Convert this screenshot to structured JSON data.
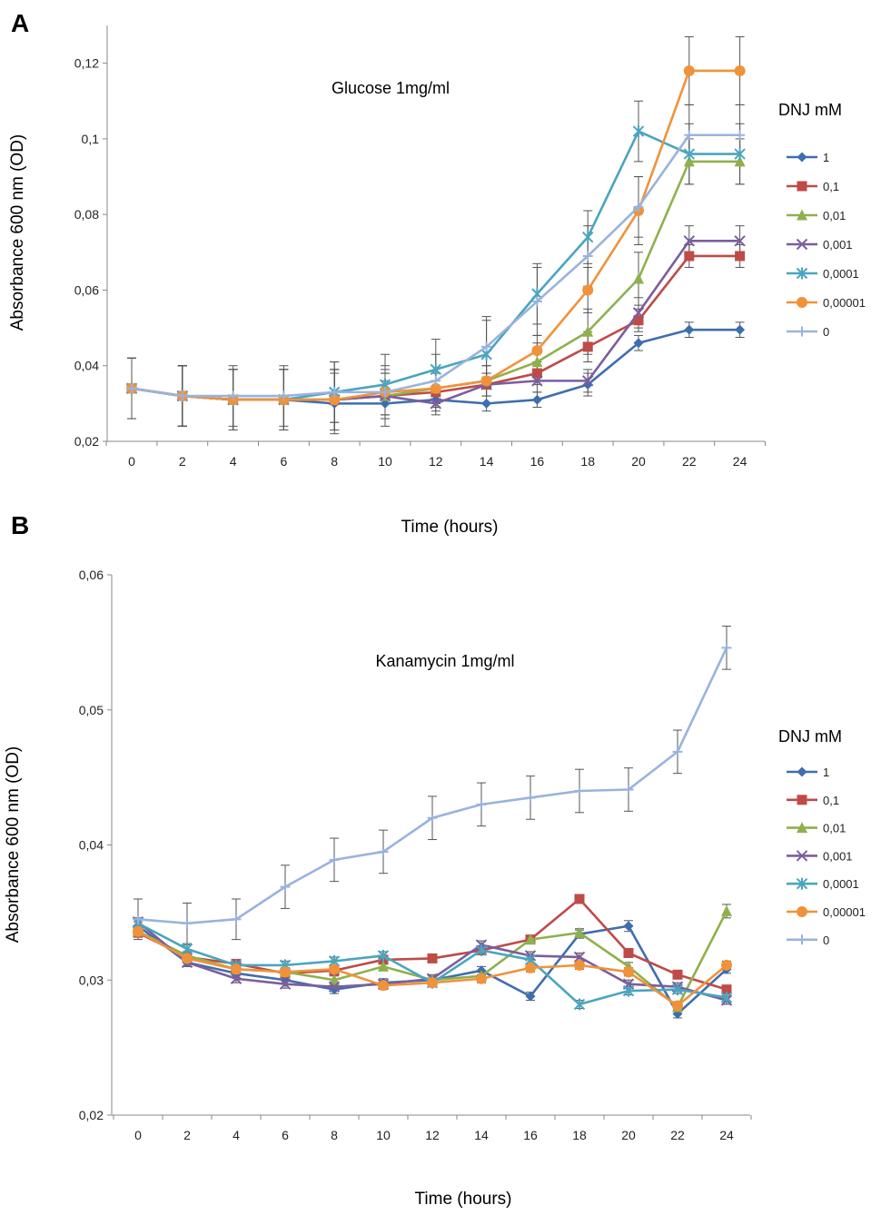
{
  "chart_data": [
    {
      "panel": "A",
      "type": "line",
      "title": "Glucose 1mg/ml",
      "xlabel": "Time (hours)",
      "ylabel": "Absorbance 600 nm (OD)",
      "x": [
        0,
        2,
        4,
        6,
        8,
        10,
        12,
        14,
        16,
        18,
        20,
        22,
        24
      ],
      "x_ticks": [
        "0",
        "2",
        "4",
        "6",
        "8",
        "10",
        "12",
        "14",
        "16",
        "18",
        "20",
        "22",
        "24"
      ],
      "ylim": [
        0.02,
        0.13
      ],
      "y_ticks": [
        0.02,
        0.04,
        0.06,
        0.08,
        0.1,
        0.12
      ],
      "y_tick_labels": [
        "0,02",
        "0,04",
        "0,06",
        "0,08",
        "0,1",
        "0,12"
      ],
      "legend_title": "DNJ mM",
      "legend_position": "right",
      "series": [
        {
          "name": "1",
          "color": "#3f6eae",
          "marker": "diamond",
          "values": [
            0.034,
            0.032,
            0.031,
            0.031,
            0.03,
            0.03,
            0.031,
            0.03,
            0.031,
            0.035,
            0.046,
            0.0495,
            0.0495
          ],
          "errors": [
            0.008,
            0.008,
            0.008,
            0.008,
            0.008,
            0.006,
            0.003,
            0.002,
            0.002,
            0.003,
            0.002,
            0.002,
            0.002
          ]
        },
        {
          "name": "0,1",
          "color": "#be4b48",
          "marker": "square",
          "values": [
            0.034,
            0.032,
            0.031,
            0.031,
            0.031,
            0.032,
            0.033,
            0.035,
            0.038,
            0.045,
            0.052,
            0.069,
            0.069
          ],
          "errors": [
            0.008,
            0.008,
            0.008,
            0.008,
            0.008,
            0.006,
            0.003,
            0.003,
            0.003,
            0.004,
            0.003,
            0.003,
            0.003
          ]
        },
        {
          "name": "0,01",
          "color": "#8fb04d",
          "marker": "triangle",
          "values": [
            0.034,
            0.032,
            0.031,
            0.031,
            0.031,
            0.032,
            0.034,
            0.036,
            0.041,
            0.049,
            0.063,
            0.094,
            0.094
          ],
          "errors": [
            0.008,
            0.008,
            0.008,
            0.008,
            0.008,
            0.006,
            0.004,
            0.004,
            0.005,
            0.006,
            0.007,
            0.006,
            0.006
          ]
        },
        {
          "name": "0,001",
          "color": "#7b5e9e",
          "marker": "x",
          "values": [
            0.034,
            0.032,
            0.031,
            0.031,
            0.031,
            0.032,
            0.03,
            0.035,
            0.036,
            0.036,
            0.054,
            0.073,
            0.073
          ],
          "errors": [
            0.008,
            0.008,
            0.008,
            0.008,
            0.008,
            0.006,
            0.003,
            0.003,
            0.003,
            0.003,
            0.004,
            0.004,
            0.004
          ]
        },
        {
          "name": "0,0001",
          "color": "#4aa5bf",
          "marker": "star",
          "values": [
            0.034,
            0.032,
            0.031,
            0.031,
            0.033,
            0.035,
            0.039,
            0.043,
            0.059,
            0.074,
            0.102,
            0.096,
            0.096
          ],
          "errors": [
            0.008,
            0.008,
            0.008,
            0.008,
            0.008,
            0.008,
            0.008,
            0.009,
            0.008,
            0.007,
            0.008,
            0.008,
            0.008
          ]
        },
        {
          "name": "0,00001",
          "color": "#f0923a",
          "marker": "circle",
          "values": [
            0.034,
            0.032,
            0.031,
            0.031,
            0.031,
            0.033,
            0.034,
            0.036,
            0.044,
            0.06,
            0.081,
            0.118,
            0.118
          ],
          "errors": [
            0.008,
            0.008,
            0.008,
            0.008,
            0.008,
            0.006,
            0.004,
            0.004,
            0.004,
            0.006,
            0.009,
            0.009,
            0.009
          ]
        },
        {
          "name": "0",
          "color": "#99b3dd",
          "marker": "plus",
          "values": [
            0.034,
            0.032,
            0.032,
            0.032,
            0.033,
            0.033,
            0.036,
            0.045,
            0.057,
            0.069,
            0.082,
            0.101,
            0.101
          ],
          "errors": [
            0.008,
            0.008,
            0.008,
            0.008,
            0.008,
            0.007,
            0.007,
            0.008,
            0.009,
            0.008,
            0.008,
            0.008,
            0.008
          ]
        }
      ]
    },
    {
      "panel": "B",
      "type": "line",
      "title": "Kanamycin 1mg/ml",
      "xlabel": "Time (hours)",
      "ylabel": "Absorbance 600 nm (OD)",
      "x": [
        0,
        2,
        4,
        6,
        8,
        10,
        12,
        14,
        16,
        18,
        20,
        22,
        24
      ],
      "x_ticks": [
        "0",
        "2",
        "4",
        "6",
        "8",
        "10",
        "12",
        "14",
        "16",
        "18",
        "20",
        "22",
        "24"
      ],
      "ylim": [
        0.02,
        0.06
      ],
      "y_ticks": [
        0.02,
        0.03,
        0.04,
        0.05,
        0.06
      ],
      "y_tick_labels": [
        "0,02",
        "0,03",
        "0,04",
        "0,05",
        "0,06"
      ],
      "legend_title": "DNJ mM",
      "legend_position": "right",
      "series": [
        {
          "name": "1",
          "color": "#3f6eae",
          "marker": "diamond",
          "values": [
            0.034,
            0.0313,
            0.0305,
            0.03,
            0.0293,
            0.0298,
            0.03,
            0.0307,
            0.0288,
            0.0334,
            0.034,
            0.0275,
            0.0308
          ],
          "errors": [
            0.0003,
            0.0003,
            0.0003,
            0.0003,
            0.0003,
            0.0003,
            0.0003,
            0.0003,
            0.0003,
            0.0003,
            0.0004,
            0.0003,
            0.0003
          ]
        },
        {
          "name": "0,1",
          "color": "#be4b48",
          "marker": "square",
          "values": [
            0.0335,
            0.0317,
            0.0312,
            0.0305,
            0.0307,
            0.0315,
            0.0316,
            0.0322,
            0.033,
            0.036,
            0.032,
            0.0304,
            0.0293
          ],
          "errors": [
            0.0003,
            0.0003,
            0.0003,
            0.0003,
            0.0003,
            0.0003,
            0.0003,
            0.0003,
            0.0003,
            0.0003,
            0.0003,
            0.0003,
            0.0003
          ]
        },
        {
          "name": "0,01",
          "color": "#8fb04d",
          "marker": "triangle",
          "values": [
            0.0336,
            0.0318,
            0.0308,
            0.0306,
            0.03,
            0.031,
            0.03,
            0.0303,
            0.033,
            0.0335,
            0.031,
            0.028,
            0.0351
          ],
          "errors": [
            0.0003,
            0.0003,
            0.0003,
            0.0003,
            0.0003,
            0.0003,
            0.0003,
            0.0003,
            0.0003,
            0.0003,
            0.0003,
            0.0003,
            0.0005
          ]
        },
        {
          "name": "0,001",
          "color": "#7b5e9e",
          "marker": "x",
          "values": [
            0.0343,
            0.0313,
            0.0301,
            0.0297,
            0.0295,
            0.0297,
            0.0301,
            0.0326,
            0.0318,
            0.0317,
            0.0297,
            0.0295,
            0.0285
          ],
          "errors": [
            0.0003,
            0.0003,
            0.0003,
            0.0003,
            0.0003,
            0.0003,
            0.0003,
            0.0003,
            0.0003,
            0.0003,
            0.0003,
            0.0003,
            0.0003
          ]
        },
        {
          "name": "0,0001",
          "color": "#4aa5bf",
          "marker": "star",
          "values": [
            0.0342,
            0.0323,
            0.0311,
            0.0311,
            0.0314,
            0.0318,
            0.0298,
            0.0322,
            0.0315,
            0.0282,
            0.0292,
            0.0293,
            0.0287
          ],
          "errors": [
            0.0003,
            0.0003,
            0.0003,
            0.0003,
            0.0003,
            0.0003,
            0.0003,
            0.0003,
            0.0003,
            0.0003,
            0.0003,
            0.0003,
            0.0003
          ]
        },
        {
          "name": "0,00001",
          "color": "#f0923a",
          "marker": "circle",
          "values": [
            0.0336,
            0.0316,
            0.0308,
            0.0306,
            0.0308,
            0.0296,
            0.0298,
            0.0301,
            0.0309,
            0.0311,
            0.0306,
            0.0281,
            0.0311
          ],
          "errors": [
            0.0003,
            0.0003,
            0.0003,
            0.0003,
            0.0003,
            0.0003,
            0.0003,
            0.0003,
            0.0003,
            0.0003,
            0.0003,
            0.0003,
            0.0003
          ]
        },
        {
          "name": "0",
          "color": "#99b3dd",
          "marker": "plus",
          "values": [
            0.0345,
            0.0342,
            0.0345,
            0.0369,
            0.0389,
            0.0395,
            0.042,
            0.043,
            0.0435,
            0.044,
            0.0441,
            0.0469,
            0.0546
          ],
          "errors": [
            0.0015,
            0.0015,
            0.0015,
            0.0016,
            0.0016,
            0.0016,
            0.0016,
            0.0016,
            0.0016,
            0.0016,
            0.0016,
            0.0016,
            0.0016
          ]
        }
      ]
    }
  ]
}
